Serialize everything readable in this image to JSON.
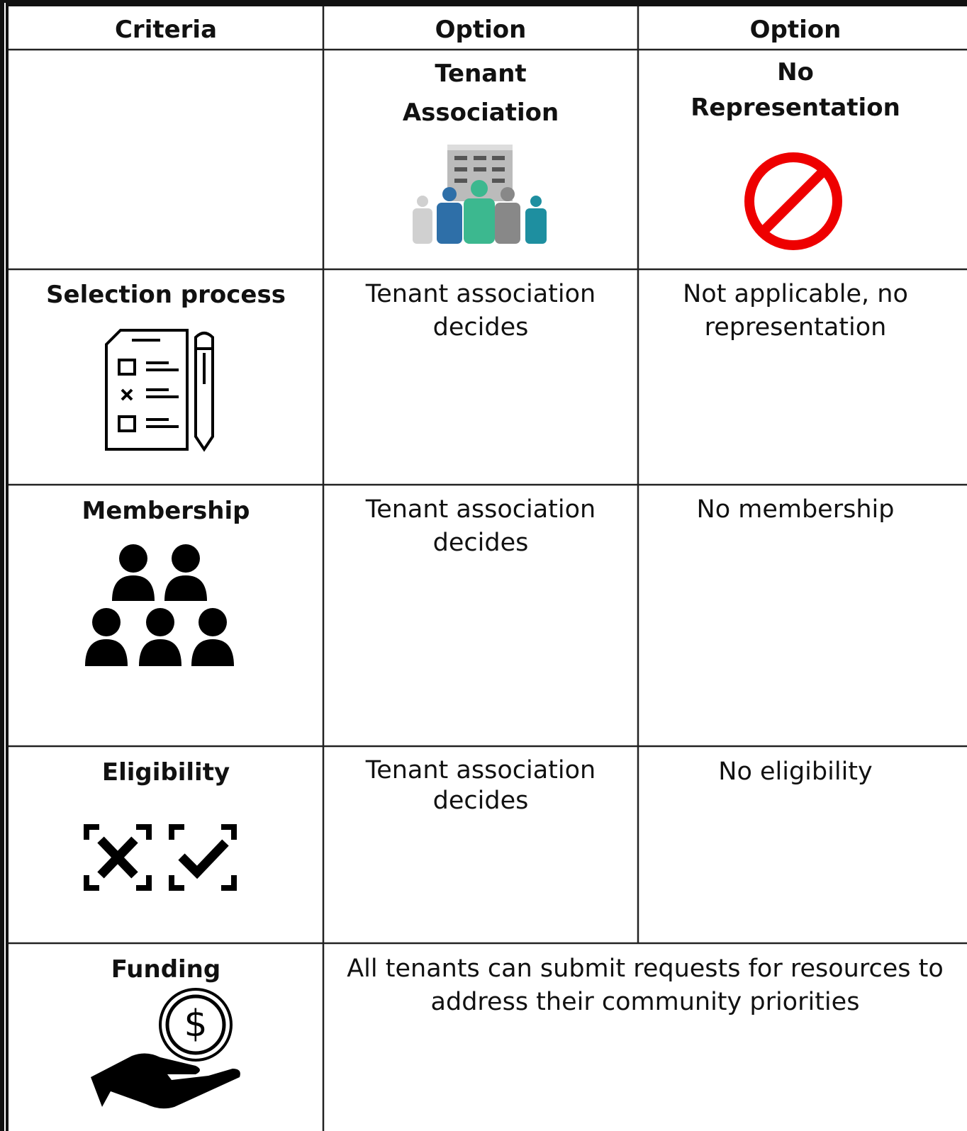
{
  "table": {
    "header": [
      "Criteria",
      "Option",
      "Option"
    ],
    "options": [
      "Tenant Association",
      "No Representation"
    ],
    "rows": [
      {
        "criterion": "Selection process",
        "cells": [
          "Tenant association decides",
          "Not applicable, no representation"
        ]
      },
      {
        "criterion": "Membership",
        "cells": [
          "Tenant association decides",
          "No membership"
        ]
      },
      {
        "criterion": "Eligibility",
        "cells": [
          "Tenant association decides",
          "No eligibility"
        ]
      },
      {
        "criterion": "Funding",
        "cells": [
          "All tenants can submit requests for resources to address their community priorities"
        ]
      }
    ]
  }
}
